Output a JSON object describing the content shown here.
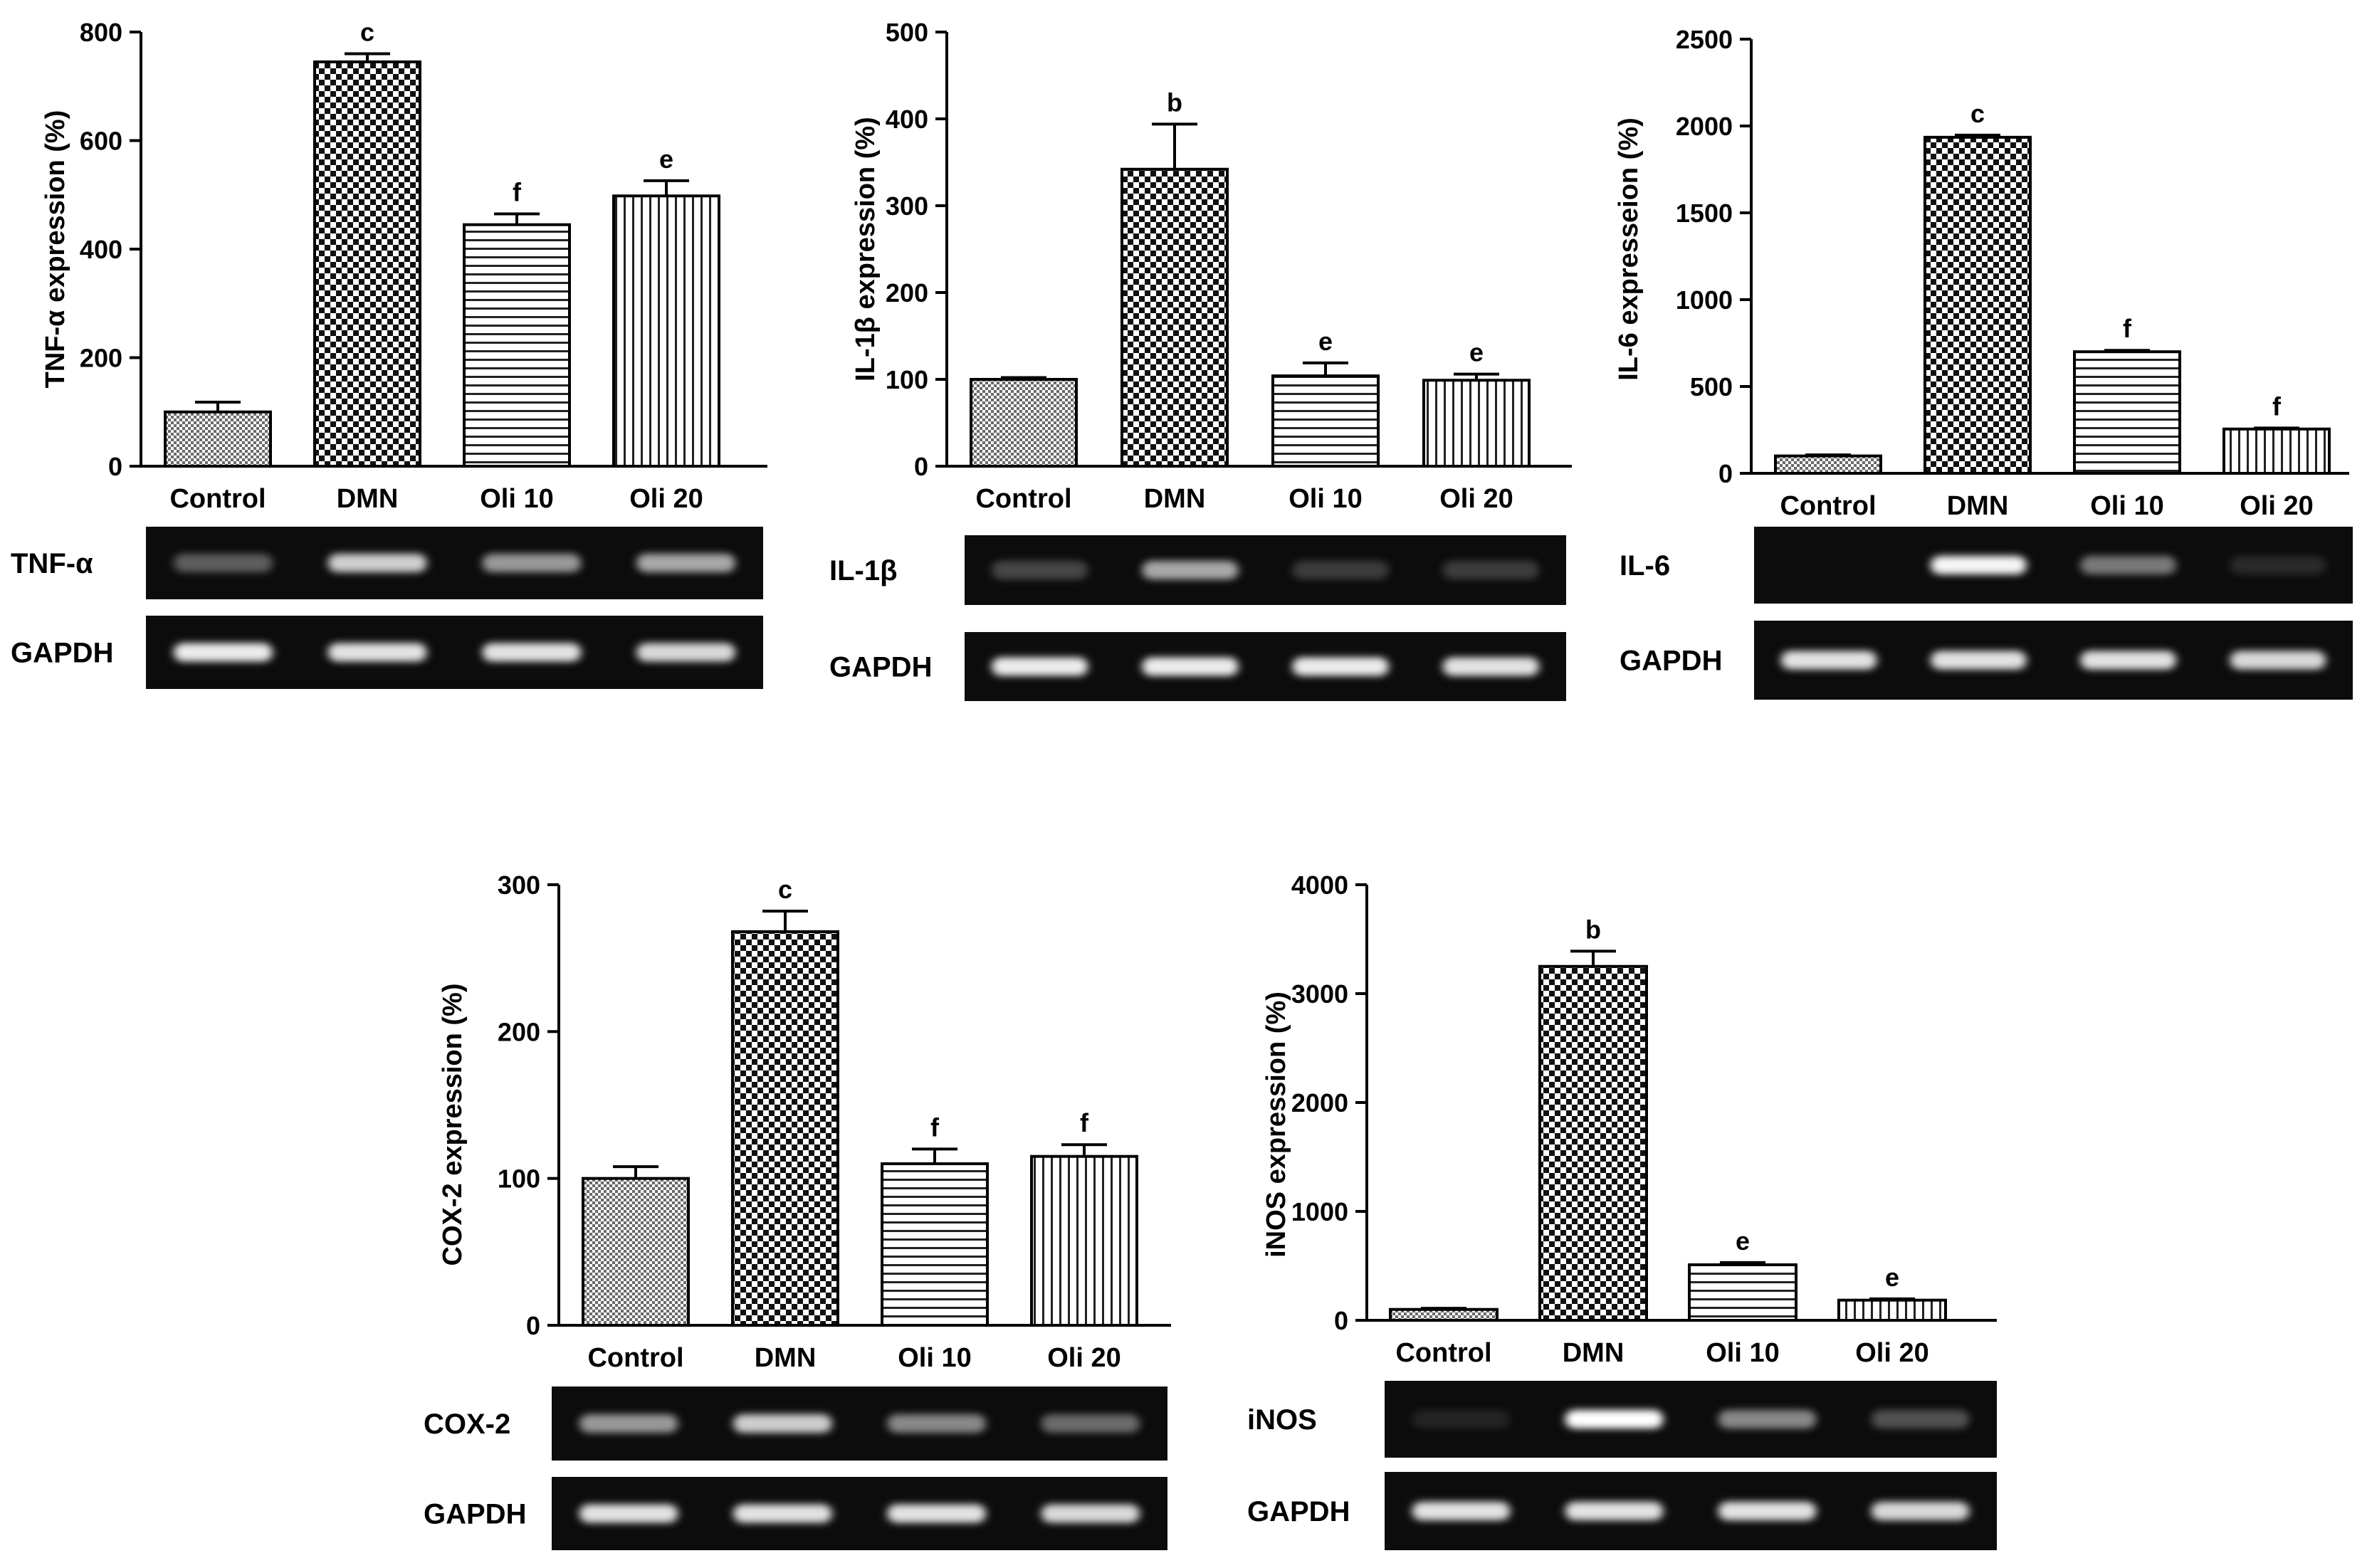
{
  "categories": [
    "Control",
    "DMN",
    "Oli 10",
    "Oli 20"
  ],
  "chart_data": [
    {
      "type": "bar",
      "ylabel": "TNF-α expression (%)",
      "ylim": [
        0,
        800
      ],
      "yticks": [
        0,
        200,
        400,
        600,
        800
      ],
      "categories": [
        "Control",
        "DMN",
        "Oli 10",
        "Oli 20"
      ],
      "values": [
        100,
        745,
        445,
        498
      ],
      "errors": [
        18,
        15,
        20,
        28
      ],
      "sig_labels": [
        "",
        "c",
        "f",
        "e"
      ],
      "blot": {
        "target": "TNF-α",
        "control": "GAPDH",
        "target_intensity": [
          0.35,
          0.75,
          0.55,
          0.6
        ],
        "control_intensity": [
          0.9,
          0.85,
          0.85,
          0.8
        ]
      }
    },
    {
      "type": "bar",
      "ylabel": "IL-1β expression (%)",
      "ylim": [
        0,
        500
      ],
      "yticks": [
        0,
        100,
        200,
        300,
        400,
        500
      ],
      "categories": [
        "Control",
        "DMN",
        "Oli 10",
        "Oli 20"
      ],
      "values": [
        100,
        342,
        104,
        99
      ],
      "errors": [
        2,
        52,
        15,
        7
      ],
      "sig_labels": [
        "",
        "b",
        "e",
        "e"
      ],
      "blot": {
        "target": "IL-1β",
        "control": "GAPDH",
        "target_intensity": [
          0.25,
          0.6,
          0.2,
          0.2
        ],
        "control_intensity": [
          0.9,
          0.9,
          0.9,
          0.85
        ]
      }
    },
    {
      "type": "bar",
      "ylabel": "IL-6 expresseion (%)",
      "ylim": [
        0,
        2500
      ],
      "yticks": [
        0,
        500,
        1000,
        1500,
        2000,
        2500
      ],
      "categories": [
        "Control",
        "DMN",
        "Oli 10",
        "Oli 20"
      ],
      "values": [
        100,
        1935,
        700,
        255
      ],
      "errors": [
        6,
        12,
        8,
        6
      ],
      "sig_labels": [
        "",
        "c",
        "f",
        "f"
      ],
      "blot": {
        "target": "IL-6",
        "control": "GAPDH",
        "target_intensity": [
          0.0,
          0.95,
          0.45,
          0.1
        ],
        "control_intensity": [
          0.85,
          0.85,
          0.85,
          0.8
        ]
      }
    },
    {
      "type": "bar",
      "ylabel": "COX-2 expression (%)",
      "ylim": [
        0,
        300
      ],
      "yticks": [
        0,
        100,
        200,
        300
      ],
      "categories": [
        "Control",
        "DMN",
        "Oli 10",
        "Oli 20"
      ],
      "values": [
        100,
        268,
        110,
        115
      ],
      "errors": [
        8,
        14,
        10,
        8
      ],
      "sig_labels": [
        "",
        "c",
        "f",
        "f"
      ],
      "blot": {
        "target": "COX-2",
        "control": "GAPDH",
        "target_intensity": [
          0.55,
          0.75,
          0.5,
          0.4
        ],
        "control_intensity": [
          0.85,
          0.85,
          0.85,
          0.8
        ]
      }
    },
    {
      "type": "bar",
      "ylabel": "iNOS expression (%)",
      "ylim": [
        0,
        4000
      ],
      "yticks": [
        0,
        1000,
        2000,
        3000,
        4000
      ],
      "categories": [
        "Control",
        "DMN",
        "Oli 10",
        "Oli 20"
      ],
      "values": [
        100,
        3250,
        510,
        185
      ],
      "errors": [
        10,
        140,
        20,
        12
      ],
      "sig_labels": [
        "",
        "b",
        "e",
        "e"
      ],
      "blot": {
        "target": "iNOS",
        "control": "GAPDH",
        "target_intensity": [
          0.05,
          1.0,
          0.5,
          0.3
        ],
        "control_intensity": [
          0.85,
          0.85,
          0.85,
          0.8
        ]
      }
    }
  ]
}
